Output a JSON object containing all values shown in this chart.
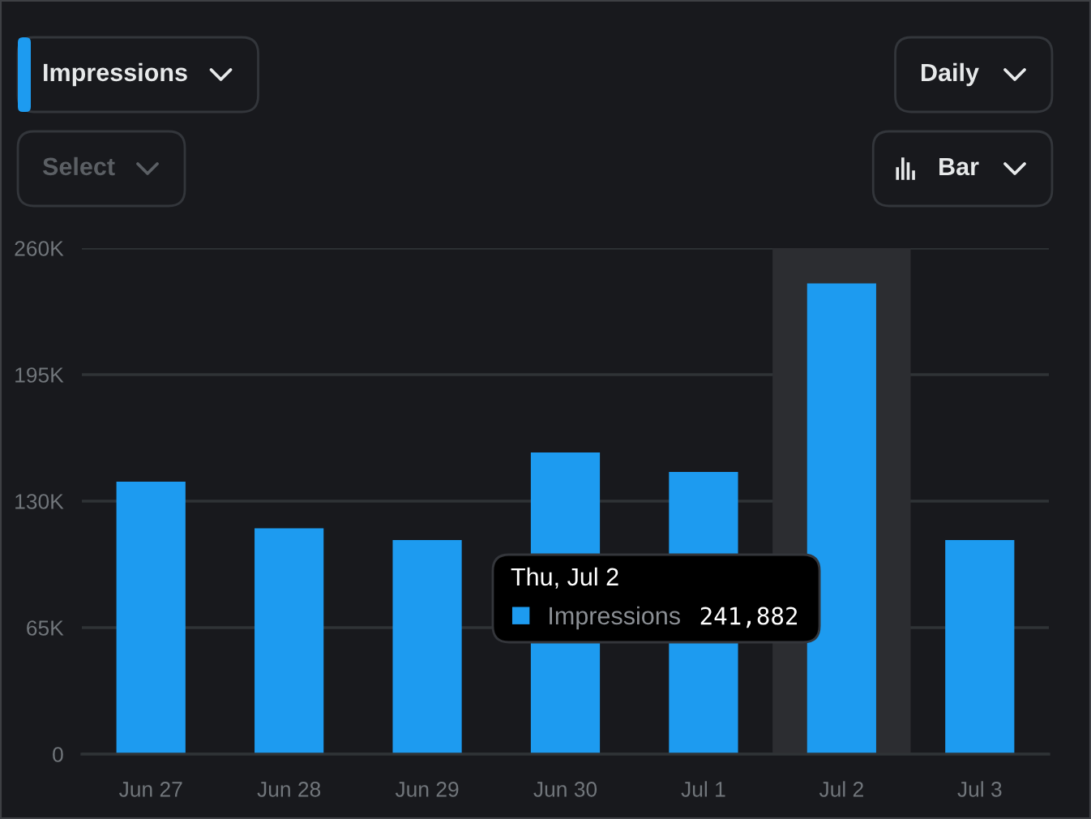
{
  "chart_data": {
    "type": "bar",
    "categories": [
      "Jun 27",
      "Jun 28",
      "Jun 29",
      "Jun 30",
      "Jul 1",
      "Jul 2",
      "Jul 3"
    ],
    "series": [
      {
        "name": "Impressions",
        "color": "#1d9bf0",
        "values": [
          140000,
          116000,
          110000,
          155000,
          145000,
          241882,
          110000
        ]
      }
    ],
    "ylim": [
      0,
      260000
    ],
    "yticks": [
      0,
      {
        "value": 65000,
        "label": "65K"
      },
      {
        "value": 130000,
        "label": "130K"
      },
      {
        "value": 195000,
        "label": "195K"
      },
      {
        "value": 260000,
        "label": "260K"
      }
    ],
    "grid": "y",
    "legend": "center",
    "bands": [
      {
        "axis": "x",
        "from": "Jul 2",
        "to": "Jul 2",
        "color": "#2c2d31"
      }
    ],
    "annotations": [
      "Impressions",
      "Daily",
      "Select",
      "Bar",
      "Thu, Jul 2",
      "241,882"
    ]
  }
}
